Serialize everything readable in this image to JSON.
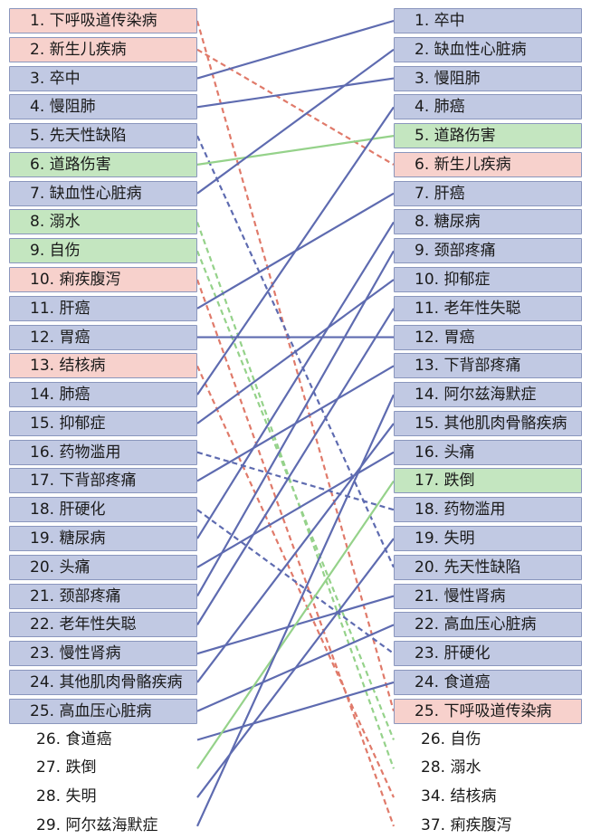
{
  "colors": {
    "blue": "#c1c9e3",
    "red": "#f7d1cc",
    "green": "#c4e6c0",
    "line_blue": "#5e6bb0",
    "line_red": "#e07a6a",
    "line_green": "#95d28a"
  },
  "left": [
    {
      "label": "1. 下呼吸道传染病",
      "group": "red"
    },
    {
      "label": "2. 新生儿疾病",
      "group": "red"
    },
    {
      "label": "3. 卒中",
      "group": "blue"
    },
    {
      "label": "4. 慢阻肺",
      "group": "blue"
    },
    {
      "label": "5. 先天性缺陷",
      "group": "blue"
    },
    {
      "label": "6. 道路伤害",
      "group": "green"
    },
    {
      "label": "7. 缺血性心脏病",
      "group": "blue"
    },
    {
      "label": "8. 溺水",
      "group": "green"
    },
    {
      "label": "9. 自伤",
      "group": "green"
    },
    {
      "label": "10. 痢疾腹泻",
      "group": "red"
    },
    {
      "label": "11. 肝癌",
      "group": "blue"
    },
    {
      "label": "12. 胃癌",
      "group": "blue"
    },
    {
      "label": "13. 结核病",
      "group": "red"
    },
    {
      "label": "14. 肺癌",
      "group": "blue"
    },
    {
      "label": "15. 抑郁症",
      "group": "blue"
    },
    {
      "label": "16. 药物滥用",
      "group": "blue"
    },
    {
      "label": "17. 下背部疼痛",
      "group": "blue"
    },
    {
      "label": "18. 肝硬化",
      "group": "blue"
    },
    {
      "label": "19. 糖尿病",
      "group": "blue"
    },
    {
      "label": "20. 头痛",
      "group": "blue"
    },
    {
      "label": "21. 颈部疼痛",
      "group": "blue"
    },
    {
      "label": "22. 老年性失聪",
      "group": "blue"
    },
    {
      "label": "23. 慢性肾病",
      "group": "blue"
    },
    {
      "label": "24. 其他肌肉骨骼疾病",
      "group": "blue"
    },
    {
      "label": "25. 高血压心脏病",
      "group": "blue"
    },
    {
      "label": "26. 食道癌",
      "group": "none"
    },
    {
      "label": "27. 跌倒",
      "group": "none"
    },
    {
      "label": "28. 失明",
      "group": "none"
    },
    {
      "label": "29. 阿尔兹海默症",
      "group": "none"
    }
  ],
  "right": [
    {
      "label": "1. 卒中",
      "group": "blue"
    },
    {
      "label": "2. 缺血性心脏病",
      "group": "blue"
    },
    {
      "label": "3. 慢阻肺",
      "group": "blue"
    },
    {
      "label": "4. 肺癌",
      "group": "blue"
    },
    {
      "label": "5. 道路伤害",
      "group": "green"
    },
    {
      "label": "6. 新生儿疾病",
      "group": "red"
    },
    {
      "label": "7. 肝癌",
      "group": "blue"
    },
    {
      "label": "8. 糖尿病",
      "group": "blue"
    },
    {
      "label": "9. 颈部疼痛",
      "group": "blue"
    },
    {
      "label": "10. 抑郁症",
      "group": "blue"
    },
    {
      "label": "11. 老年性失聪",
      "group": "blue"
    },
    {
      "label": "12. 胃癌",
      "group": "blue"
    },
    {
      "label": "13. 下背部疼痛",
      "group": "blue"
    },
    {
      "label": "14. 阿尔兹海默症",
      "group": "blue"
    },
    {
      "label": "15. 其他肌肉骨骼疾病",
      "group": "blue"
    },
    {
      "label": "16. 头痛",
      "group": "blue"
    },
    {
      "label": "17. 跌倒",
      "group": "green"
    },
    {
      "label": "18. 药物滥用",
      "group": "blue"
    },
    {
      "label": "19. 失明",
      "group": "blue"
    },
    {
      "label": "20. 先天性缺陷",
      "group": "blue"
    },
    {
      "label": "21. 慢性肾病",
      "group": "blue"
    },
    {
      "label": "22. 高血压心脏病",
      "group": "blue"
    },
    {
      "label": "23. 肝硬化",
      "group": "blue"
    },
    {
      "label": "24. 食道癌",
      "group": "blue"
    },
    {
      "label": "25. 下呼吸道传染病",
      "group": "red"
    },
    {
      "label": "26. 自伤",
      "group": "none"
    },
    {
      "label": "28. 溺水",
      "group": "none"
    },
    {
      "label": "34. 结核病",
      "group": "none"
    },
    {
      "label": "37. 痢疾腹泻",
      "group": "none"
    }
  ],
  "links": [
    {
      "from": 0,
      "to": 24,
      "color": "red",
      "dashed": true
    },
    {
      "from": 1,
      "to": 5,
      "color": "red",
      "dashed": true
    },
    {
      "from": 2,
      "to": 0,
      "color": "blue",
      "dashed": false
    },
    {
      "from": 3,
      "to": 2,
      "color": "blue",
      "dashed": false
    },
    {
      "from": 4,
      "to": 19,
      "color": "blue",
      "dashed": true
    },
    {
      "from": 5,
      "to": 4,
      "color": "green",
      "dashed": false
    },
    {
      "from": 6,
      "to": 1,
      "color": "blue",
      "dashed": false
    },
    {
      "from": 7,
      "to": 26,
      "color": "green",
      "dashed": true
    },
    {
      "from": 8,
      "to": 25,
      "color": "green",
      "dashed": true
    },
    {
      "from": 9,
      "to": 28,
      "color": "red",
      "dashed": true
    },
    {
      "from": 10,
      "to": 6,
      "color": "blue",
      "dashed": false
    },
    {
      "from": 11,
      "to": 11,
      "color": "blue",
      "dashed": false
    },
    {
      "from": 12,
      "to": 27,
      "color": "red",
      "dashed": true
    },
    {
      "from": 13,
      "to": 3,
      "color": "blue",
      "dashed": false
    },
    {
      "from": 14,
      "to": 9,
      "color": "blue",
      "dashed": false
    },
    {
      "from": 15,
      "to": 17,
      "color": "blue",
      "dashed": true
    },
    {
      "from": 16,
      "to": 12,
      "color": "blue",
      "dashed": false
    },
    {
      "from": 17,
      "to": 22,
      "color": "blue",
      "dashed": true
    },
    {
      "from": 18,
      "to": 7,
      "color": "blue",
      "dashed": false
    },
    {
      "from": 19,
      "to": 15,
      "color": "blue",
      "dashed": false
    },
    {
      "from": 20,
      "to": 8,
      "color": "blue",
      "dashed": false
    },
    {
      "from": 21,
      "to": 10,
      "color": "blue",
      "dashed": false
    },
    {
      "from": 22,
      "to": 20,
      "color": "blue",
      "dashed": false
    },
    {
      "from": 23,
      "to": 14,
      "color": "blue",
      "dashed": false
    },
    {
      "from": 24,
      "to": 21,
      "color": "blue",
      "dashed": false
    },
    {
      "from": 25,
      "to": 23,
      "color": "blue",
      "dashed": false
    },
    {
      "from": 26,
      "to": 16,
      "color": "green",
      "dashed": false
    },
    {
      "from": 27,
      "to": 18,
      "color": "blue",
      "dashed": false
    },
    {
      "from": 28,
      "to": 13,
      "color": "blue",
      "dashed": false
    }
  ]
}
